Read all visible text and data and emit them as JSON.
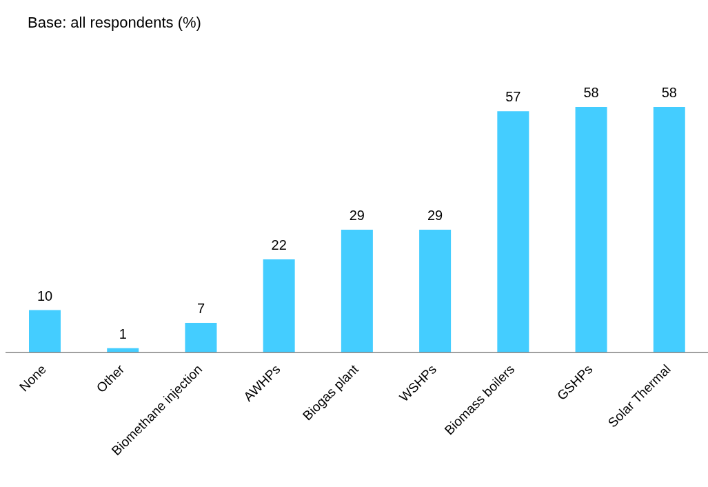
{
  "chart_data": {
    "type": "bar",
    "title": "Base: all respondents (%)",
    "categories": [
      "None",
      "Other",
      "Biomethane injection",
      "AWHPs",
      "Biogas plant",
      "WSHPs",
      "Biomass boilers",
      "GSHPs",
      "Solar Thermal"
    ],
    "values": [
      10,
      1,
      7,
      22,
      29,
      29,
      57,
      58,
      58
    ],
    "color": "#44cdff",
    "data_labels": true
  }
}
